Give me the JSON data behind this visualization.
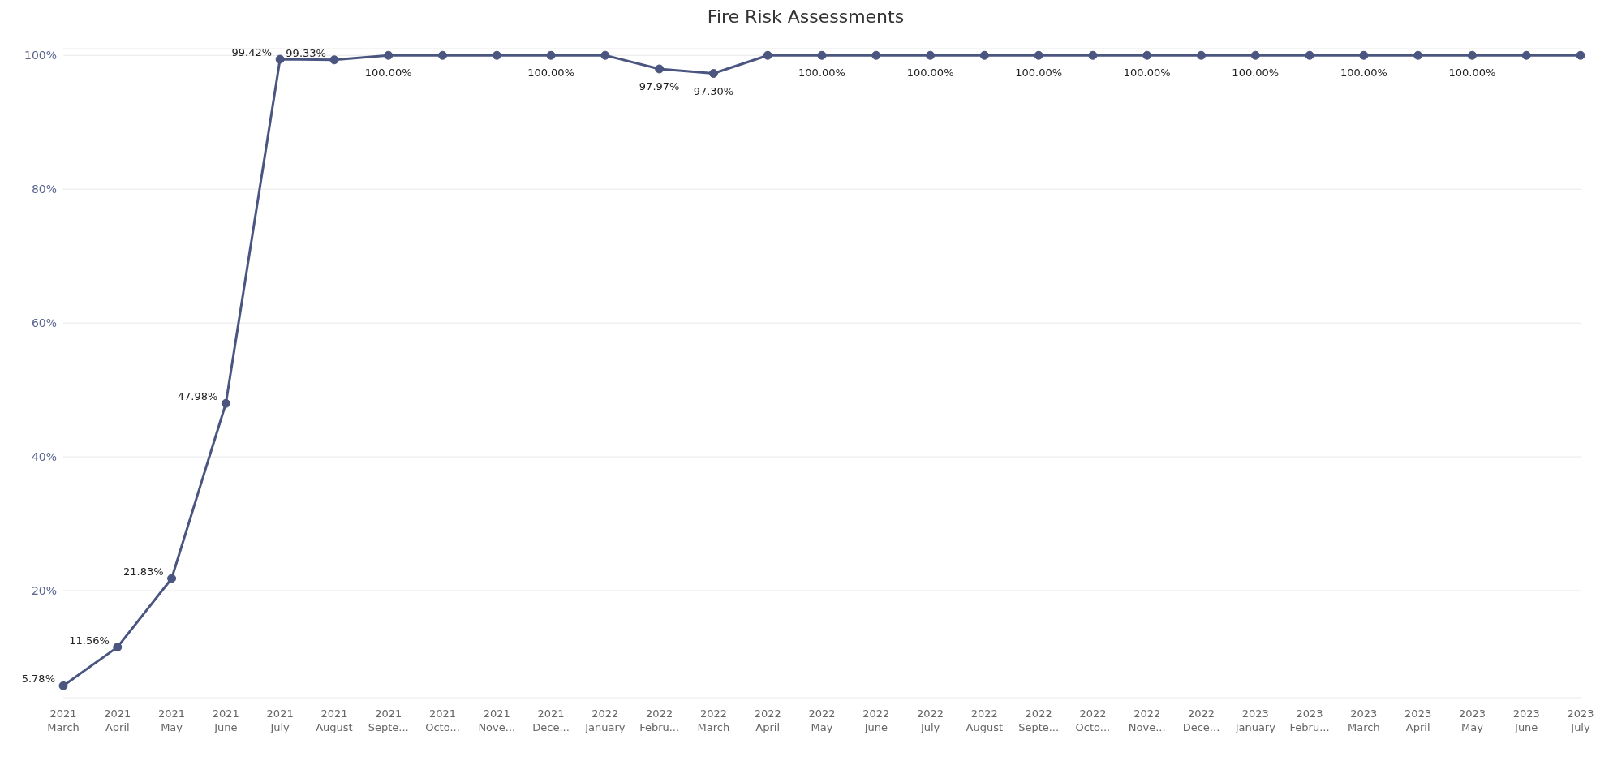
{
  "chart_data": {
    "type": "line",
    "title": "Fire Risk Assessments",
    "categories": [
      "2021 March",
      "2021 April",
      "2021 May",
      "2021 June",
      "2021 July",
      "2021 August",
      "2021 Septe...",
      "2021 Octo...",
      "2021 Nove...",
      "2021 Dece...",
      "2022 January",
      "2022 Febru...",
      "2022 March",
      "2022 April",
      "2022 May",
      "2022 June",
      "2022 July",
      "2022 August",
      "2022 Septe...",
      "2022 Octo...",
      "2022 Nove...",
      "2022 Dece...",
      "2023 January",
      "2023 Febru...",
      "2023 March",
      "2023 April",
      "2023 May",
      "2023 June",
      "2023 July"
    ],
    "series": [
      {
        "color": "#4a5580",
        "values": [
          5.78,
          11.56,
          21.83,
          47.98,
          99.42,
          99.33,
          100,
          100,
          100,
          100,
          100,
          97.97,
          97.3,
          100,
          100,
          100,
          100,
          100,
          100,
          100,
          100,
          100,
          100,
          100,
          100,
          100,
          100,
          100,
          100
        ],
        "value_labels": [
          "5.78%",
          "11.56%",
          "21.83%",
          "47.98%",
          "99.42%",
          "99.33%",
          "100.00%",
          null,
          null,
          "100.00%",
          null,
          "97.97%",
          "97.30%",
          null,
          "100.00%",
          null,
          "100.00%",
          null,
          "100.00%",
          null,
          "100.00%",
          null,
          "100.00%",
          null,
          "100.00%",
          null,
          "100.00%",
          null,
          null
        ]
      }
    ],
    "ylim": [
      4,
      101
    ],
    "yticks": [
      {
        "value": 20,
        "label": "20%"
      },
      {
        "value": 40,
        "label": "40%"
      },
      {
        "value": 60,
        "label": "60%"
      },
      {
        "value": 80,
        "label": "80%"
      },
      {
        "value": 100,
        "label": "100%"
      }
    ],
    "grid": "y",
    "marker": "circle",
    "line_style": "solid"
  }
}
